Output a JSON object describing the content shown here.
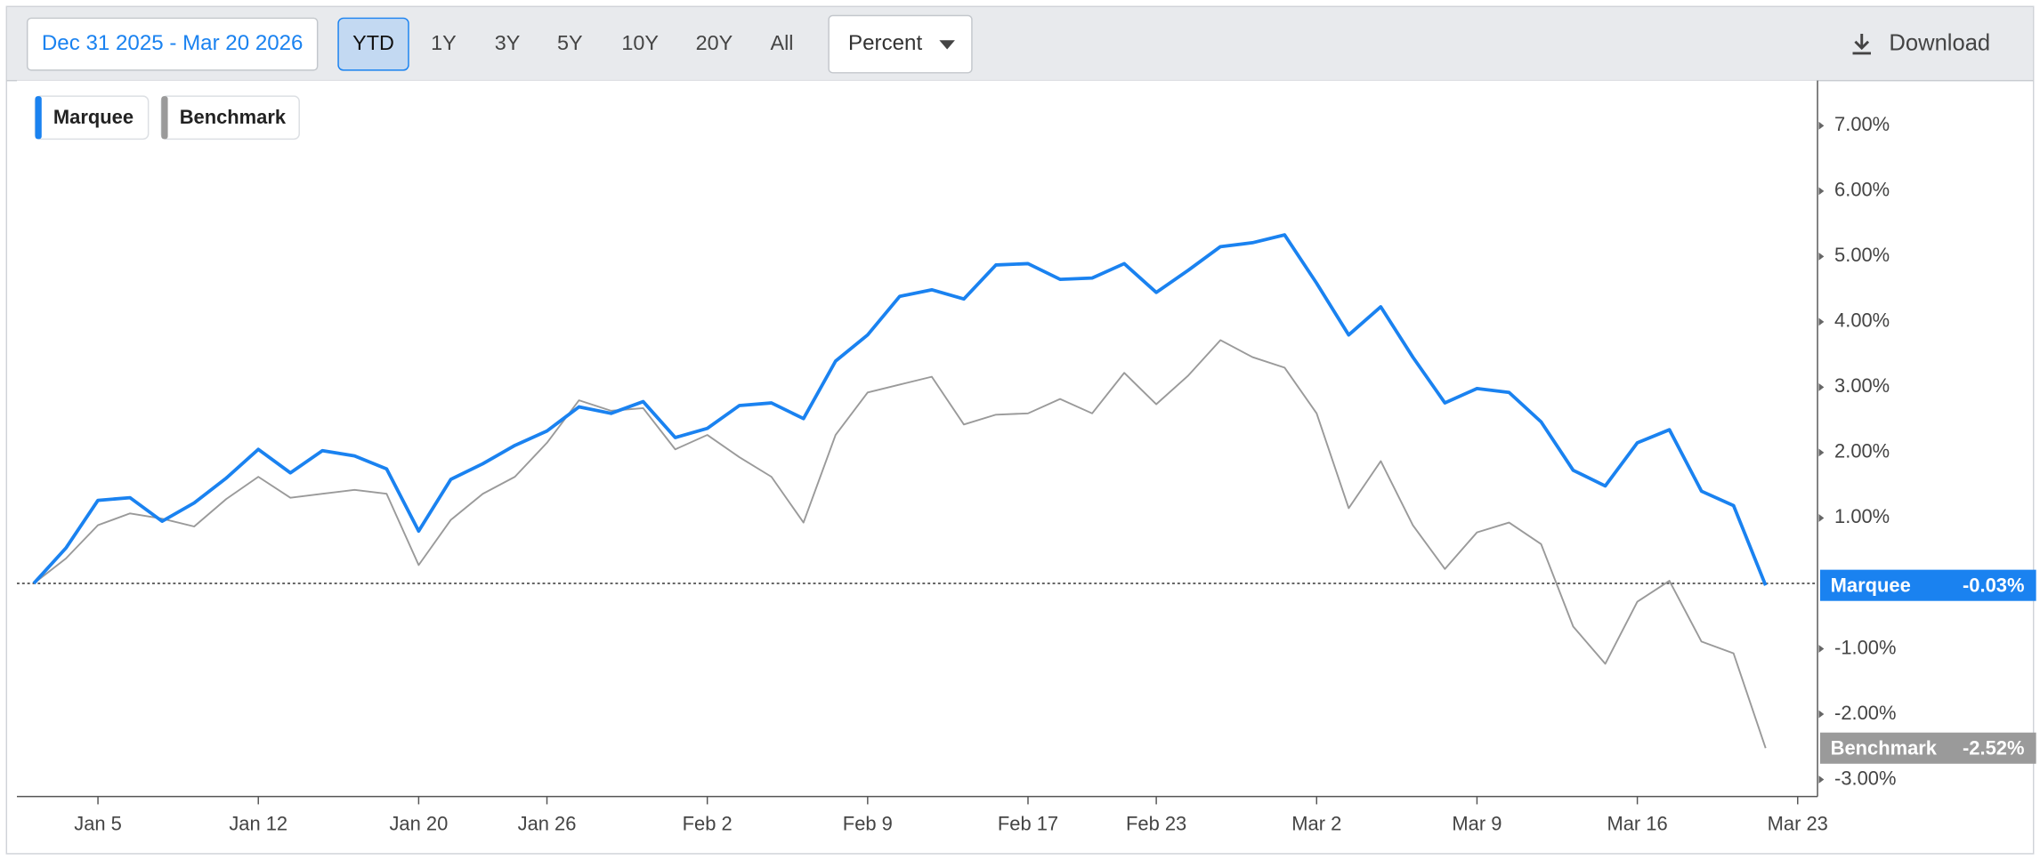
{
  "toolbar": {
    "date_range": "Dec 31 2025 - Mar 20 2026",
    "ranges": [
      "YTD",
      "1Y",
      "3Y",
      "5Y",
      "10Y",
      "20Y",
      "All"
    ],
    "active_range": "YTD",
    "unit_menu": "Percent",
    "download": "Download"
  },
  "chart_data": {
    "type": "line",
    "categories": [
      null,
      null,
      "Jan 5",
      null,
      null,
      null,
      null,
      "Jan 12",
      null,
      null,
      null,
      null,
      "Jan 20",
      null,
      null,
      null,
      "Jan 26",
      null,
      null,
      null,
      null,
      "Feb 2",
      null,
      null,
      null,
      null,
      "Feb 9",
      null,
      null,
      null,
      null,
      "Feb 17",
      null,
      null,
      null,
      "Feb 23",
      null,
      null,
      null,
      null,
      "Mar 2",
      null,
      null,
      null,
      null,
      "Mar 9",
      null,
      null,
      null,
      null,
      "Mar 16",
      null,
      null,
      null,
      null,
      "Mar 23"
    ],
    "series": [
      {
        "name": "Marquee",
        "color": "#1a82f0",
        "end_label": "-0.03%",
        "values": [
          0,
          0.54,
          1.27,
          1.31,
          0.95,
          1.23,
          1.61,
          2.05,
          1.69,
          2.03,
          1.95,
          1.75,
          0.8,
          1.59,
          1.83,
          2.11,
          2.33,
          2.7,
          2.6,
          2.78,
          2.23,
          2.37,
          2.72,
          2.76,
          2.52,
          3.4,
          3.8,
          4.39,
          4.49,
          4.35,
          4.87,
          4.89,
          4.65,
          4.67,
          4.89,
          4.45,
          4.79,
          5.15,
          5.21,
          5.33,
          4.59,
          3.8,
          4.23,
          3.46,
          2.76,
          2.98,
          2.92,
          2.47,
          1.73,
          1.49,
          2.15,
          2.35,
          1.41,
          1.19,
          -0.03,
          null
        ]
      },
      {
        "name": "Benchmark",
        "color": "#9a9a9a",
        "end_label": "-2.52%",
        "values": [
          0,
          0.38,
          0.89,
          1.07,
          0.99,
          0.87,
          1.29,
          1.63,
          1.31,
          1.37,
          1.43,
          1.37,
          0.28,
          0.97,
          1.37,
          1.63,
          2.15,
          2.8,
          2.64,
          2.68,
          2.05,
          2.27,
          1.93,
          1.63,
          0.93,
          2.27,
          2.92,
          3.04,
          3.16,
          2.43,
          2.58,
          2.6,
          2.82,
          2.6,
          3.22,
          2.74,
          3.18,
          3.72,
          3.46,
          3.3,
          2.6,
          1.15,
          1.87,
          0.89,
          0.22,
          0.78,
          0.93,
          0.6,
          -0.66,
          -1.23,
          -0.28,
          0.04,
          -0.89,
          -1.07,
          -2.52,
          null
        ]
      }
    ],
    "ylim": [
      -3.26,
      7.69
    ],
    "yticks": [
      {
        "value": -3,
        "label": "-3.00%"
      },
      {
        "value": -2,
        "label": "-2.00%"
      },
      {
        "value": -1,
        "label": "-1.00%"
      },
      {
        "value": 1,
        "label": "1.00%"
      },
      {
        "value": 2,
        "label": "2.00%"
      },
      {
        "value": 3,
        "label": "3.00%"
      },
      {
        "value": 4,
        "label": "4.00%"
      },
      {
        "value": 5,
        "label": "5.00%"
      },
      {
        "value": 6,
        "label": "6.00%"
      },
      {
        "value": 7,
        "label": "7.00%"
      }
    ],
    "baseline": 0
  }
}
